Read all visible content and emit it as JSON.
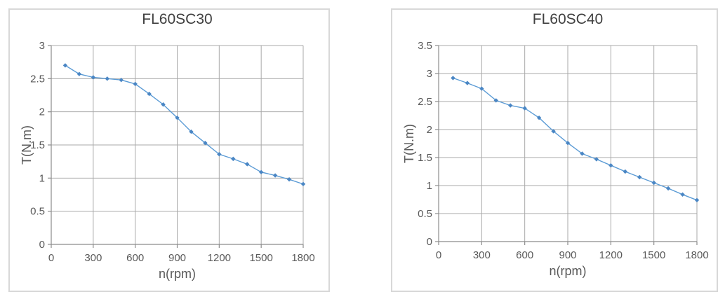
{
  "colors": {
    "card_border": "#d8d8d8",
    "grid": "#a9a9a9",
    "axis": "#8c8c8c",
    "tick_text": "#595959",
    "title_text": "#404040",
    "line": "#5b9bd5",
    "marker": "#4a86c4"
  },
  "chart_data": [
    {
      "type": "line",
      "title": "FL60SC30",
      "xlabel": "n(rpm)",
      "ylabel": "T(N.m)",
      "x": [
        100,
        200,
        300,
        400,
        500,
        600,
        700,
        800,
        900,
        1000,
        1100,
        1200,
        1300,
        1400,
        1500,
        1600,
        1700,
        1800
      ],
      "values": [
        2.7,
        2.57,
        2.52,
        2.5,
        2.48,
        2.42,
        2.27,
        2.11,
        1.91,
        1.7,
        1.53,
        1.36,
        1.29,
        1.21,
        1.09,
        1.04,
        0.98,
        0.91
      ],
      "xlim": [
        0,
        1800
      ],
      "ylim": [
        0,
        3
      ],
      "xticks": [
        0,
        300,
        600,
        900,
        1200,
        1500,
        1800
      ],
      "yticks": [
        0,
        0.5,
        1,
        1.5,
        2,
        2.5,
        3
      ],
      "xtick_labels": [
        "0",
        "300",
        "600",
        "900",
        "1200",
        "1500",
        "1800"
      ],
      "ytick_labels": [
        "0",
        "0.5",
        "1",
        "1.5",
        "2",
        "2.5",
        "3"
      ],
      "grid": true,
      "legend": "none",
      "line_color": "#5b9bd5",
      "marker": "diamond",
      "marker_color": "#4a86c4"
    },
    {
      "type": "line",
      "title": "FL60SC40",
      "xlabel": "n(rpm)",
      "ylabel": "T(N.m)",
      "x": [
        100,
        200,
        300,
        400,
        500,
        600,
        700,
        800,
        900,
        1000,
        1100,
        1200,
        1300,
        1400,
        1500,
        1600,
        1700,
        1800
      ],
      "values": [
        2.92,
        2.83,
        2.73,
        2.52,
        2.43,
        2.38,
        2.21,
        1.97,
        1.76,
        1.57,
        1.47,
        1.36,
        1.25,
        1.15,
        1.05,
        0.95,
        0.84,
        0.74
      ],
      "xlim": [
        0,
        1800
      ],
      "ylim": [
        0,
        3.5
      ],
      "xticks": [
        0,
        300,
        600,
        900,
        1200,
        1500,
        1800
      ],
      "yticks": [
        0,
        0.5,
        1,
        1.5,
        2,
        2.5,
        3,
        3.5
      ],
      "xtick_labels": [
        "0",
        "300",
        "600",
        "900",
        "1200",
        "1500",
        "1800"
      ],
      "ytick_labels": [
        "0",
        "0.5",
        "1",
        "1.5",
        "2",
        "2.5",
        "3",
        "3.5"
      ],
      "grid": true,
      "legend": "none",
      "line_color": "#5b9bd5",
      "marker": "diamond",
      "marker_color": "#4a86c4"
    }
  ]
}
